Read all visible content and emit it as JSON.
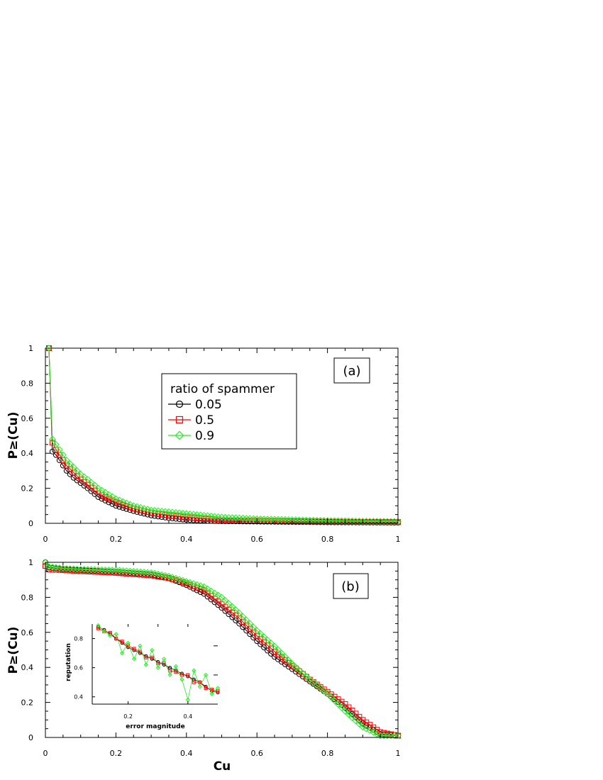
{
  "chart_data": [
    {
      "type": "line",
      "panel_label": "(a)",
      "xlabel": "",
      "ylabel": "P≥(Cu)",
      "xlim": [
        0,
        1
      ],
      "ylim": [
        0,
        1
      ],
      "xticks": [
        "0",
        "0.2",
        "0.4",
        "0.6",
        "0.8",
        "1"
      ],
      "yticks": [
        "0",
        "0.2",
        "0.4",
        "0.6",
        "0.8",
        "1"
      ],
      "legend": {
        "title": "ratio of spammer",
        "placement": "top-center",
        "entries": [
          "0.05",
          "0.5",
          "0.9"
        ]
      },
      "series": [
        {
          "name": "0.05",
          "color": "#000000",
          "marker": "circle",
          "x": [
            0.01,
            0.02,
            0.03,
            0.04,
            0.05,
            0.06,
            0.08,
            0.1,
            0.12,
            0.15,
            0.2,
            0.25,
            0.3,
            0.35,
            0.4,
            0.45,
            0.5,
            0.6,
            0.7,
            0.8,
            0.9,
            1.0
          ],
          "y": [
            1.0,
            0.41,
            0.39,
            0.36,
            0.33,
            0.3,
            0.26,
            0.23,
            0.2,
            0.15,
            0.1,
            0.07,
            0.045,
            0.03,
            0.02,
            0.015,
            0.012,
            0.01,
            0.008,
            0.006,
            0.005,
            0.004
          ]
        },
        {
          "name": "0.5",
          "color": "#ff0000",
          "marker": "square",
          "x": [
            0.01,
            0.02,
            0.03,
            0.04,
            0.05,
            0.06,
            0.08,
            0.1,
            0.12,
            0.15,
            0.2,
            0.25,
            0.3,
            0.35,
            0.4,
            0.45,
            0.5,
            0.6,
            0.7,
            0.8,
            0.9,
            1.0
          ],
          "y": [
            1.0,
            0.46,
            0.42,
            0.39,
            0.36,
            0.33,
            0.29,
            0.25,
            0.22,
            0.17,
            0.12,
            0.085,
            0.06,
            0.045,
            0.035,
            0.025,
            0.02,
            0.015,
            0.012,
            0.01,
            0.008,
            0.007
          ]
        },
        {
          "name": "0.9",
          "color": "#22ee22",
          "marker": "diamond",
          "x": [
            0.01,
            0.02,
            0.03,
            0.04,
            0.05,
            0.06,
            0.08,
            0.1,
            0.12,
            0.15,
            0.2,
            0.25,
            0.3,
            0.35,
            0.4,
            0.45,
            0.5,
            0.6,
            0.7,
            0.8,
            0.9,
            1.0
          ],
          "y": [
            1.0,
            0.48,
            0.45,
            0.42,
            0.39,
            0.36,
            0.32,
            0.28,
            0.25,
            0.2,
            0.14,
            0.1,
            0.075,
            0.065,
            0.055,
            0.045,
            0.035,
            0.025,
            0.02,
            0.015,
            0.012,
            0.01
          ]
        }
      ]
    },
    {
      "type": "line",
      "panel_label": "(b)",
      "xlabel": "Cu",
      "ylabel": "P≥(Cu)",
      "xlim": [
        0,
        1
      ],
      "ylim": [
        0,
        1
      ],
      "xticks": [
        "0",
        "0.2",
        "0.4",
        "0.6",
        "0.8",
        "1"
      ],
      "yticks": [
        "0",
        "0.2",
        "0.4",
        "0.6",
        "0.8",
        "1"
      ],
      "series": [
        {
          "name": "0.05",
          "color": "#000000",
          "marker": "circle",
          "x": [
            0.0,
            0.01,
            0.05,
            0.1,
            0.2,
            0.3,
            0.35,
            0.4,
            0.45,
            0.5,
            0.55,
            0.6,
            0.65,
            0.7,
            0.75,
            0.8,
            0.85,
            0.9,
            0.95,
            1.0
          ],
          "y": [
            1.0,
            0.97,
            0.96,
            0.955,
            0.945,
            0.93,
            0.91,
            0.87,
            0.82,
            0.74,
            0.65,
            0.55,
            0.46,
            0.39,
            0.32,
            0.25,
            0.17,
            0.08,
            0.02,
            0.01
          ]
        },
        {
          "name": "0.5",
          "color": "#ff0000",
          "marker": "square",
          "x": [
            0.0,
            0.01,
            0.05,
            0.1,
            0.2,
            0.3,
            0.35,
            0.4,
            0.45,
            0.5,
            0.55,
            0.6,
            0.65,
            0.7,
            0.75,
            0.8,
            0.85,
            0.9,
            0.95,
            1.0
          ],
          "y": [
            0.98,
            0.96,
            0.955,
            0.95,
            0.94,
            0.925,
            0.91,
            0.88,
            0.84,
            0.76,
            0.68,
            0.58,
            0.49,
            0.41,
            0.33,
            0.26,
            0.19,
            0.1,
            0.03,
            0.01
          ]
        },
        {
          "name": "0.9",
          "color": "#22ee22",
          "marker": "diamond",
          "x": [
            0.0,
            0.01,
            0.05,
            0.1,
            0.2,
            0.3,
            0.35,
            0.4,
            0.45,
            0.5,
            0.55,
            0.6,
            0.65,
            0.7,
            0.75,
            0.8,
            0.85,
            0.9,
            0.95,
            1.0
          ],
          "y": [
            1.0,
            0.975,
            0.965,
            0.96,
            0.955,
            0.94,
            0.92,
            0.89,
            0.86,
            0.8,
            0.71,
            0.61,
            0.52,
            0.42,
            0.33,
            0.25,
            0.15,
            0.06,
            0.01,
            0.01
          ]
        }
      ],
      "inset": {
        "type": "line",
        "xlabel": "error magnitude",
        "ylabel": "reputation",
        "xlim": [
          0.08,
          0.5
        ],
        "ylim": [
          0.35,
          0.9
        ],
        "xticks": [
          "0.2",
          "0.4"
        ],
        "yticks": [
          "0.4",
          "0.6",
          "0.8"
        ],
        "series": [
          {
            "name": "0.05",
            "color": "#000000",
            "marker": "circle",
            "x": [
              0.1,
              0.12,
              0.14,
              0.16,
              0.18,
              0.2,
              0.22,
              0.24,
              0.26,
              0.28,
              0.3,
              0.32,
              0.34,
              0.36,
              0.38,
              0.4,
              0.42,
              0.44,
              0.46,
              0.48,
              0.5
            ],
            "y": [
              0.88,
              0.86,
              0.83,
              0.8,
              0.77,
              0.74,
              0.72,
              0.7,
              0.68,
              0.66,
              0.64,
              0.62,
              0.6,
              0.58,
              0.56,
              0.54,
              0.52,
              0.5,
              0.47,
              0.44,
              0.43
            ]
          },
          {
            "name": "0.5",
            "color": "#ff0000",
            "marker": "square",
            "x": [
              0.1,
              0.12,
              0.14,
              0.16,
              0.18,
              0.2,
              0.22,
              0.24,
              0.26,
              0.28,
              0.3,
              0.32,
              0.34,
              0.36,
              0.38,
              0.4,
              0.42,
              0.44,
              0.46,
              0.48,
              0.5
            ],
            "y": [
              0.87,
              0.85,
              0.84,
              0.8,
              0.78,
              0.75,
              0.73,
              0.71,
              0.67,
              0.67,
              0.63,
              0.63,
              0.58,
              0.57,
              0.55,
              0.55,
              0.5,
              0.5,
              0.46,
              0.45,
              0.44
            ]
          },
          {
            "name": "0.9",
            "color": "#22ee22",
            "marker": "diamond",
            "x": [
              0.1,
              0.12,
              0.14,
              0.16,
              0.18,
              0.2,
              0.22,
              0.24,
              0.26,
              0.28,
              0.3,
              0.32,
              0.34,
              0.36,
              0.38,
              0.4,
              0.42,
              0.44,
              0.46,
              0.48,
              0.5
            ],
            "y": [
              0.89,
              0.85,
              0.82,
              0.83,
              0.7,
              0.77,
              0.66,
              0.75,
              0.62,
              0.72,
              0.6,
              0.66,
              0.55,
              0.61,
              0.52,
              0.38,
              0.58,
              0.47,
              0.55,
              0.42,
              0.46
            ]
          }
        ]
      }
    }
  ]
}
